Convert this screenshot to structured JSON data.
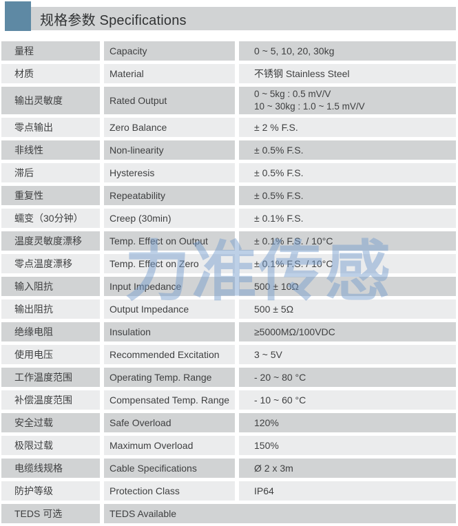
{
  "header": {
    "title": "规格参数 Specifications"
  },
  "watermark": {
    "text": "力准传感"
  },
  "colors": {
    "accent_blue": "#5e89a4",
    "row_dark": "#d1d3d4",
    "row_light": "#ebeced",
    "watermark_blue": "#769ccc",
    "text": "#3e3f40"
  },
  "table": {
    "rows": [
      {
        "cn": "量程",
        "en": "Capacity",
        "value": "0 ~ 5, 10, 20, 30kg"
      },
      {
        "cn": "材质",
        "en": "Material",
        "value": "不锈钢 Stainless Steel"
      },
      {
        "cn": "输出灵敏度",
        "en": "Rated Output",
        "value": "0 ~ 5kg : 0.5 mV/V\n10 ~ 30kg : 1.0 ~ 1.5 mV/V"
      },
      {
        "cn": "零点输出",
        "en": "Zero Balance",
        "value": "± 2 % F.S."
      },
      {
        "cn": "非线性",
        "en": "Non-linearity",
        "value": "± 0.5% F.S."
      },
      {
        "cn": "滞后",
        "en": "Hysteresis",
        "value": "± 0.5% F.S."
      },
      {
        "cn": "重复性",
        "en": "Repeatability",
        "value": "± 0.5% F.S."
      },
      {
        "cn": "蠕变（30分钟）",
        "en": "Creep (30min)",
        "value": "± 0.1% F.S."
      },
      {
        "cn": "温度灵敏度漂移",
        "en": "Temp. Effect on Output",
        "value": "± 0.1% F.S. / 10°C"
      },
      {
        "cn": "零点温度漂移",
        "en": "Temp. Effect on Zero",
        "value": "± 0.1% F.S. / 10°C"
      },
      {
        "cn": "输入阻抗",
        "en": "Input Impedance",
        "value": "500 ± 10Ω"
      },
      {
        "cn": "输出阻抗",
        "en": "Output Impedance",
        "value": "500 ± 5Ω"
      },
      {
        "cn": "绝缘电阻",
        "en": "Insulation",
        "value": "≥5000MΩ/100VDC"
      },
      {
        "cn": "使用电压",
        "en": "Recommended Excitation",
        "value": "3 ~ 5V"
      },
      {
        "cn": "工作温度范围",
        "en": "Operating Temp. Range",
        "value": "- 20 ~ 80 °C"
      },
      {
        "cn": "补偿温度范围",
        "en": "Compensated Temp. Range",
        "value": "- 10 ~ 60 °C"
      },
      {
        "cn": "安全过载",
        "en": "Safe Overload",
        "value": "120%"
      },
      {
        "cn": "极限过载",
        "en": "Maximum Overload",
        "value": "150%"
      },
      {
        "cn": "电缆线规格",
        "en": "Cable Specifications",
        "value": "Ø 2 x 3m"
      },
      {
        "cn": "防护等级",
        "en": "Protection Class",
        "value": "IP64"
      },
      {
        "cn": "TEDS 可选",
        "en": "TEDS Available",
        "value": ""
      }
    ]
  }
}
